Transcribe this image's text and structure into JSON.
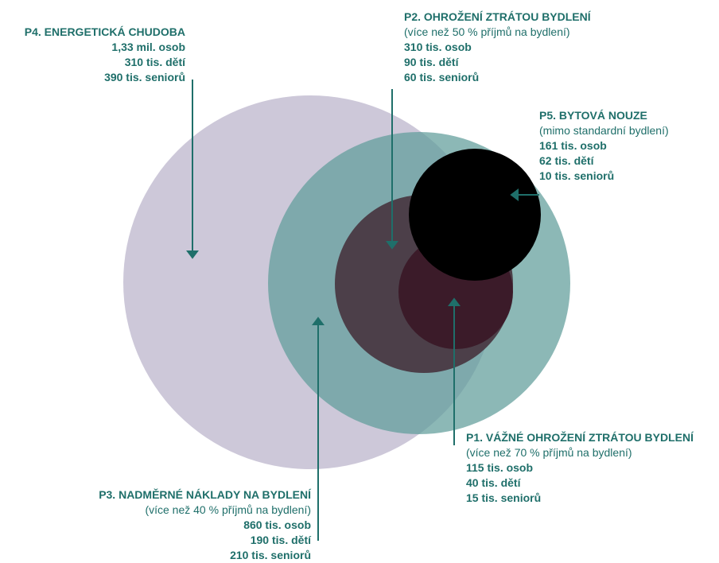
{
  "diagram": {
    "colors": {
      "text": "#1f6f6a",
      "p4_circle": "#cdc8d9",
      "p3_circle": "#5f9d9a",
      "p2_circle": "#4a3c45",
      "p1_circle": "#3b1a28",
      "p5_circle": "#000000"
    },
    "groups": {
      "p4": {
        "title": "P4. ENERGETICKÁ CHUDOBA",
        "stats": [
          "1,33 mil. osob",
          "310 tis. dětí",
          "390 tis. seniorů"
        ]
      },
      "p2": {
        "title": "P2. OHROŽENÍ ZTRÁTOU BYDLENÍ",
        "subtitle": "(více než 50 % příjmů na bydlení)",
        "stats": [
          "310 tis. osob",
          "90 tis. dětí",
          "60 tis. seniorů"
        ]
      },
      "p5": {
        "title": "P5. BYTOVÁ NOUZE",
        "subtitle": "(mimo standardní bydlení)",
        "stats": [
          "161 tis. osob",
          "62 tis. dětí",
          "10 tis. seniorů"
        ]
      },
      "p1": {
        "title": "P1. VÁŽNÉ OHROŽENÍ ZTRÁTOU BYDLENÍ",
        "subtitle": "(více než 70 % příjmů na bydlení)",
        "stats": [
          "115 tis. osob",
          "40 tis. dětí",
          "15 tis. seniorů"
        ]
      },
      "p3": {
        "title": "P3. NADMĚRNÉ NÁKLADY NA BYDLENÍ",
        "subtitle": "(více než 40 % příjmů na bydlení)",
        "stats": [
          "860 tis. osob",
          "190 tis. dětí",
          "210 tis. seniorů"
        ]
      }
    }
  }
}
